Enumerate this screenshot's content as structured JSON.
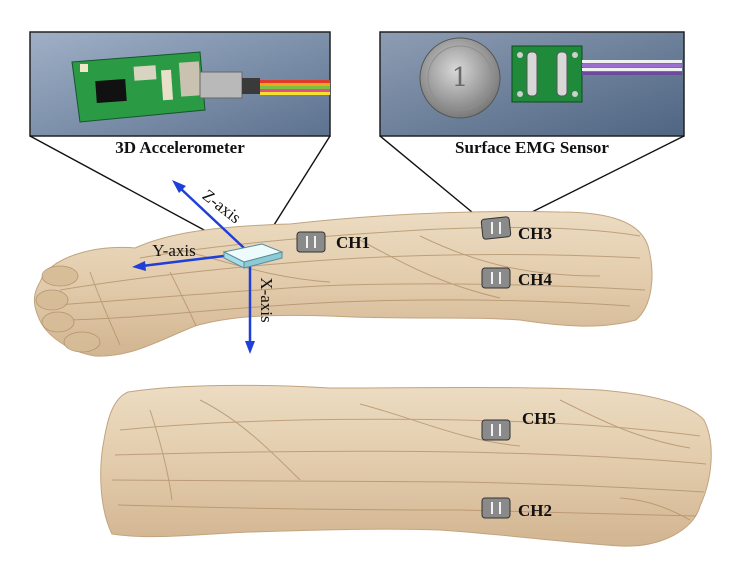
{
  "photos": {
    "accelerometer_caption": "3D Accelerometer",
    "emg_caption": "Surface EMG Sensor"
  },
  "axes": {
    "z": "Z-axis",
    "y": "Y-axis",
    "x": "X-axis",
    "color": "#1f3fd6"
  },
  "channels": {
    "ch1": "CH1",
    "ch2": "CH2",
    "ch3": "CH3",
    "ch4": "CH4",
    "ch5": "CH5"
  },
  "colors": {
    "skin": "#e6d2b4",
    "muscle_line": "#b89a78",
    "sensor_fill": "#8c8c8c",
    "pcb_green": "#1f8a3a",
    "photo_bg": "#7a8ea8"
  }
}
